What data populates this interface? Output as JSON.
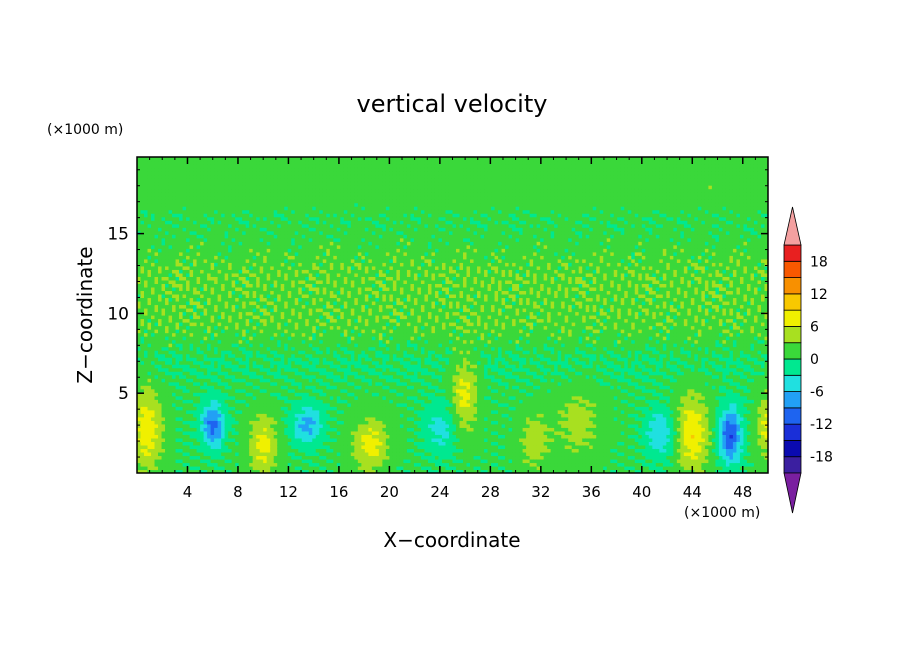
{
  "chart_data": {
    "type": "heatmap",
    "title": "vertical velocity",
    "xlabel": "X−coordinate",
    "ylabel": "Z−coordinate",
    "x_unit": "(×1000 m)",
    "y_unit": "(×1000 m)",
    "xlim": [
      0,
      50
    ],
    "ylim": [
      0,
      19.8
    ],
    "x_ticks": [
      4,
      8,
      12,
      16,
      20,
      24,
      28,
      32,
      36,
      40,
      44,
      48
    ],
    "y_ticks": [
      5,
      10,
      15
    ],
    "colorbar": {
      "levels": [
        -21,
        -18,
        -15,
        -12,
        -9,
        -6,
        -3,
        0,
        3,
        6,
        9,
        12,
        15,
        18,
        21
      ],
      "tick_labels": [
        18,
        12,
        6,
        0,
        -6,
        -12,
        -18
      ],
      "colors": [
        "#7a1fa0",
        "#3b1fa0",
        "#0a0ab0",
        "#1a2fd8",
        "#1e64f0",
        "#22a0f5",
        "#20e0e0",
        "#00e890",
        "#3ad83a",
        "#a8e020",
        "#f0f000",
        "#f8c800",
        "#f89000",
        "#f85800",
        "#e82020",
        "#f4a0a0"
      ],
      "extend": "both"
    },
    "field": {
      "background_value": 0.5,
      "bands": [
        {
          "z": 17.8,
          "dz": 1.6,
          "v": 1.6
        },
        {
          "z": 16.2,
          "dz": 1.2,
          "v": -0.6
        },
        {
          "z": 12.0,
          "dz": 2.6,
          "v": 1.8
        },
        {
          "z": 9.2,
          "dz": 1.4,
          "v": 0.9
        },
        {
          "z": 6.8,
          "dz": 1.2,
          "v": -0.8
        }
      ],
      "cells": [
        {
          "x": 0.8,
          "z": 2.8,
          "sx": 1.2,
          "sz": 2.6,
          "v": 7.5
        },
        {
          "x": 6.0,
          "z": 3.0,
          "sx": 0.9,
          "sz": 1.4,
          "v": -10.5
        },
        {
          "x": 10.0,
          "z": 1.8,
          "sx": 1.1,
          "sz": 1.8,
          "v": 7.0
        },
        {
          "x": 13.5,
          "z": 3.0,
          "sx": 1.2,
          "sz": 1.2,
          "v": -7.5
        },
        {
          "x": 18.5,
          "z": 1.8,
          "sx": 1.4,
          "sz": 1.6,
          "v": 7.0
        },
        {
          "x": 26.0,
          "z": 5.0,
          "sx": 1.0,
          "sz": 2.4,
          "v": 6.5
        },
        {
          "x": 24.0,
          "z": 2.8,
          "sx": 1.3,
          "sz": 1.6,
          "v": -4.5
        },
        {
          "x": 31.5,
          "z": 2.0,
          "sx": 1.2,
          "sz": 1.8,
          "v": 4.5
        },
        {
          "x": 35.0,
          "z": 3.2,
          "sx": 1.8,
          "sz": 2.2,
          "v": 4.0
        },
        {
          "x": 41.5,
          "z": 2.5,
          "sx": 1.2,
          "sz": 1.5,
          "v": -6.0
        },
        {
          "x": 44.0,
          "z": 2.5,
          "sx": 1.3,
          "sz": 2.4,
          "v": 8.0
        },
        {
          "x": 47.0,
          "z": 2.4,
          "sx": 0.9,
          "sz": 1.7,
          "v": -12.0
        },
        {
          "x": 49.8,
          "z": 3.0,
          "sx": 0.7,
          "sz": 2.0,
          "v": 6.0
        }
      ]
    }
  }
}
